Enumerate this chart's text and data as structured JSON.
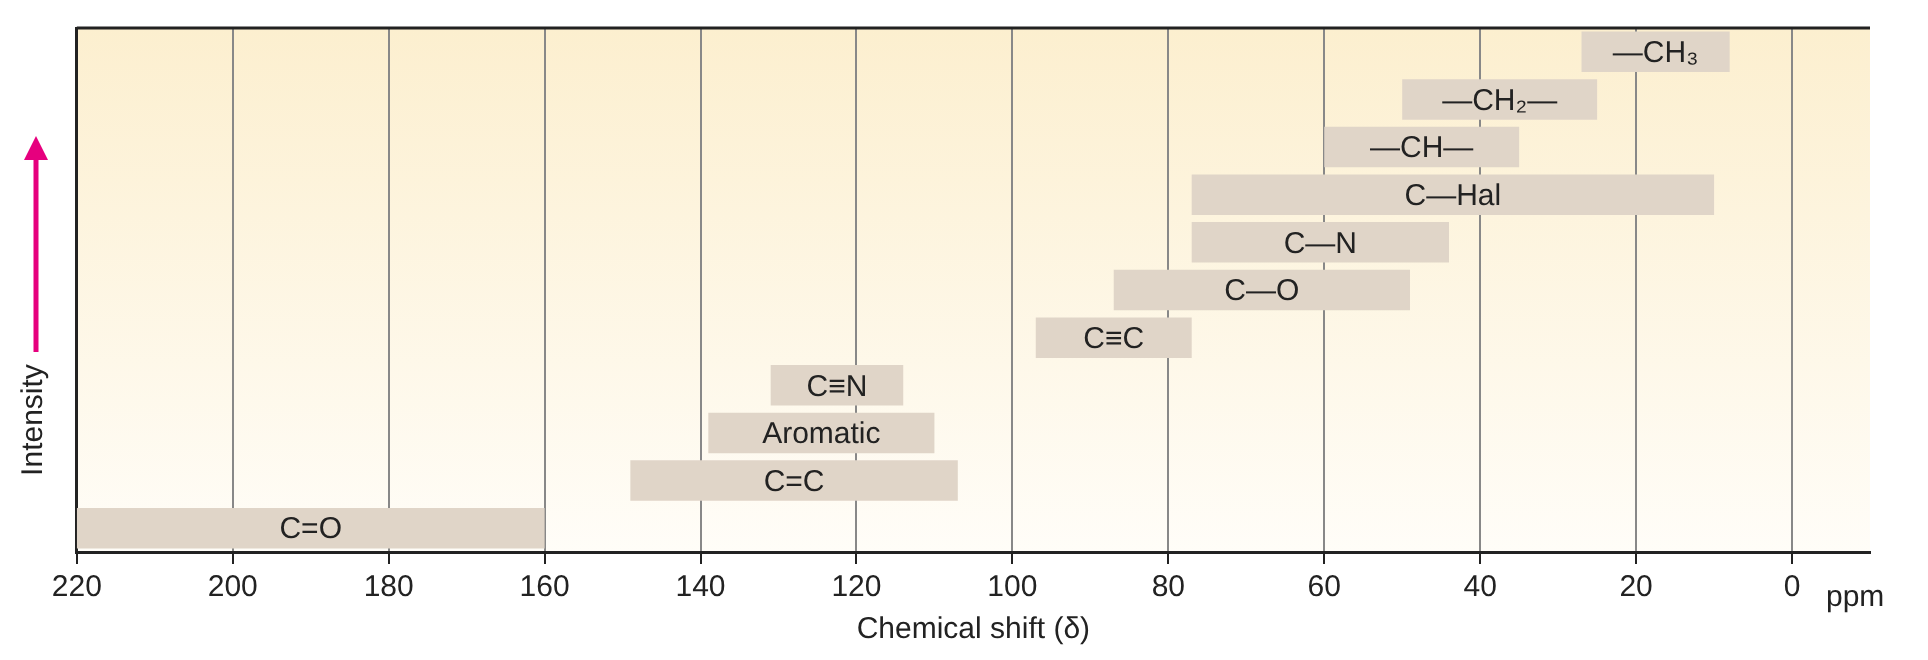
{
  "chart_data": {
    "type": "bar",
    "orientation": "horizontal",
    "xlabel": "Chemical shift (δ)",
    "ylabel": "Intensity",
    "categories": [
      "—CH₃",
      "—CH₂—",
      "—CH—",
      "C—Hal",
      "C—N",
      "C—O",
      "C≡C",
      "C≡N",
      "Aromatic",
      "C=C",
      "C=O"
    ],
    "base": [
      8,
      25,
      35,
      10,
      44,
      49,
      77,
      114,
      110,
      107,
      160
    ],
    "values": [
      19,
      25,
      25,
      67,
      33,
      38,
      20,
      17,
      29,
      42,
      60
    ],
    "color": "#e0d5c8",
    "xlim": [
      220,
      -10
    ],
    "xticks": [
      220,
      200,
      180,
      160,
      140,
      120,
      100,
      80,
      60,
      40,
      20,
      0
    ],
    "grid": "x",
    "tick_labels": "x",
    "legend": false,
    "annotations": [
      "ppm"
    ]
  }
}
